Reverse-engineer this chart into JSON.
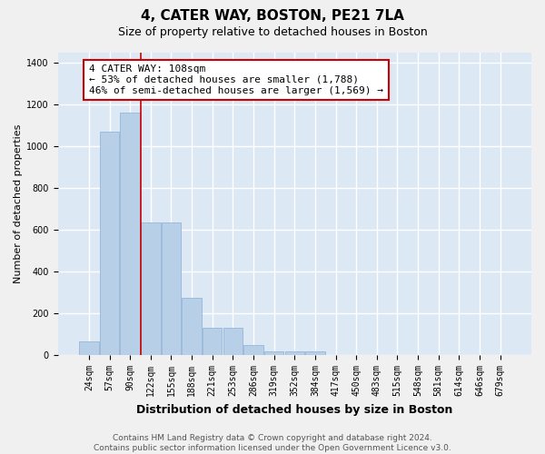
{
  "title": "4, CATER WAY, BOSTON, PE21 7LA",
  "subtitle": "Size of property relative to detached houses in Boston",
  "xlabel": "Distribution of detached houses by size in Boston",
  "ylabel": "Number of detached properties",
  "categories": [
    "24sqm",
    "57sqm",
    "90sqm",
    "122sqm",
    "155sqm",
    "188sqm",
    "221sqm",
    "253sqm",
    "286sqm",
    "319sqm",
    "352sqm",
    "384sqm",
    "417sqm",
    "450sqm",
    "483sqm",
    "515sqm",
    "548sqm",
    "581sqm",
    "614sqm",
    "646sqm",
    "679sqm"
  ],
  "values": [
    65,
    1070,
    1160,
    635,
    635,
    275,
    130,
    130,
    48,
    20,
    20,
    20,
    0,
    0,
    0,
    0,
    0,
    0,
    0,
    0,
    0
  ],
  "bar_color": "#b8cfe8",
  "bar_edge_color": "#8aafd4",
  "vline_x": 2.5,
  "vline_color": "#cc0000",
  "annotation_text": "4 CATER WAY: 108sqm\n← 53% of detached houses are smaller (1,788)\n46% of semi-detached houses are larger (1,569) →",
  "annotation_box_facecolor": "#ffffff",
  "annotation_box_edgecolor": "#cc0000",
  "ylim": [
    0,
    1450
  ],
  "yticks": [
    0,
    200,
    400,
    600,
    800,
    1000,
    1200,
    1400
  ],
  "plot_bgcolor": "#dde8f5",
  "fig_bgcolor": "#f0f0f0",
  "grid_color": "#ffffff",
  "title_fontsize": 11,
  "subtitle_fontsize": 9,
  "xlabel_fontsize": 9,
  "ylabel_fontsize": 8,
  "tick_fontsize": 7,
  "annotation_fontsize": 8,
  "footer_text": "Contains HM Land Registry data © Crown copyright and database right 2024.\nContains public sector information licensed under the Open Government Licence v3.0.",
  "footer_fontsize": 6.5
}
